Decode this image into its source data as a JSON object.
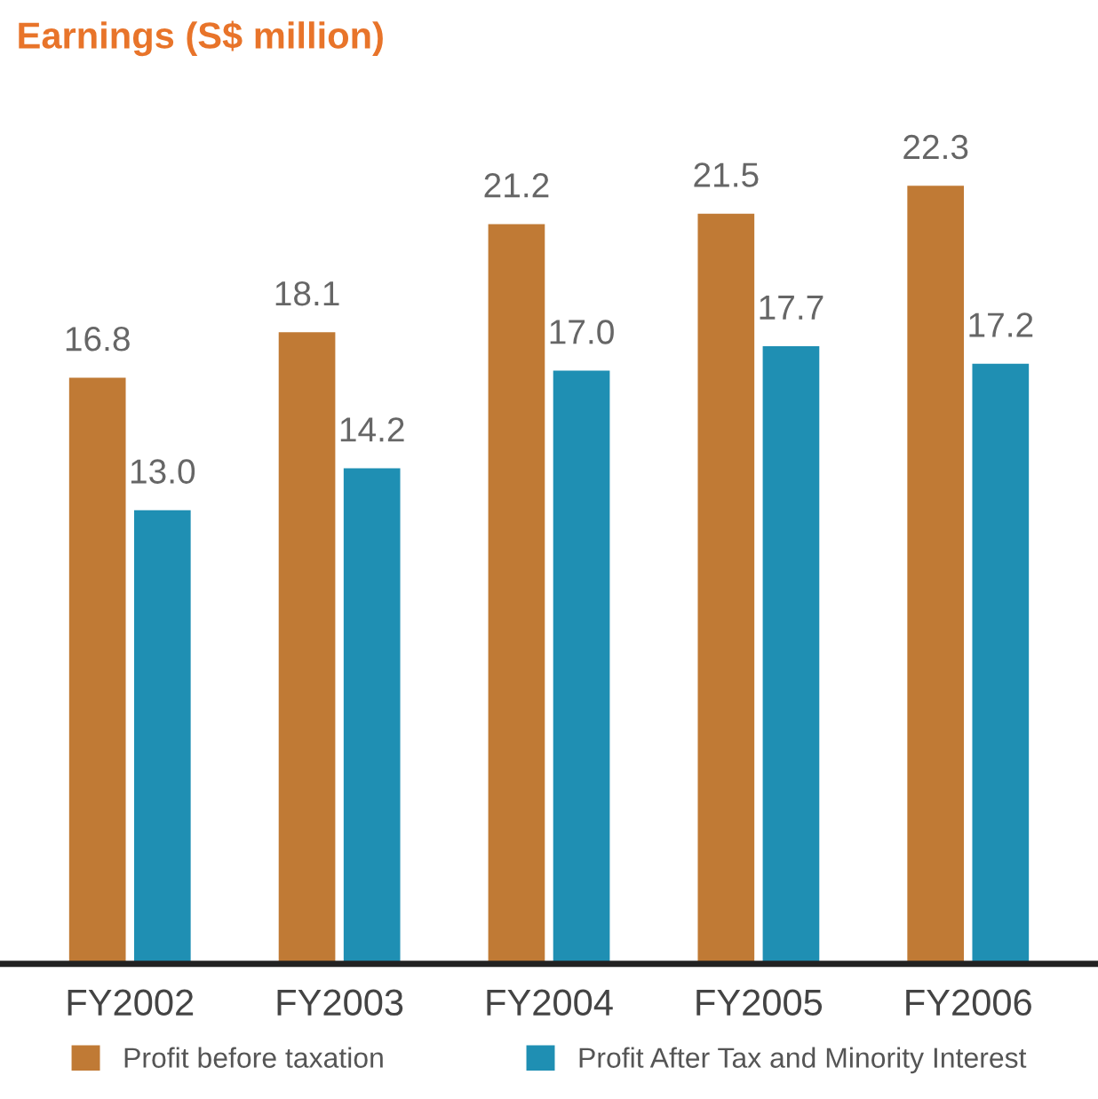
{
  "chart_data": {
    "type": "bar",
    "title": "Earnings (S$ million)",
    "categories": [
      "FY2002",
      "FY2003",
      "FY2004",
      "FY2005",
      "FY2006"
    ],
    "series": [
      {
        "name": "Profit before taxation",
        "color": "#c07a35",
        "values": [
          16.8,
          18.1,
          21.2,
          21.5,
          22.3
        ],
        "value_labels": [
          "16.8",
          "18.1",
          "21.2",
          "21.5",
          "22.3"
        ]
      },
      {
        "name": "Profit After Tax and Minority Interest",
        "color": "#1f8fb3",
        "values": [
          13.0,
          14.2,
          17.0,
          17.7,
          17.2
        ],
        "value_labels": [
          "13.0",
          "14.2",
          "17.0",
          "17.7",
          "17.2"
        ]
      }
    ],
    "legend": "bottom",
    "grid": false
  }
}
